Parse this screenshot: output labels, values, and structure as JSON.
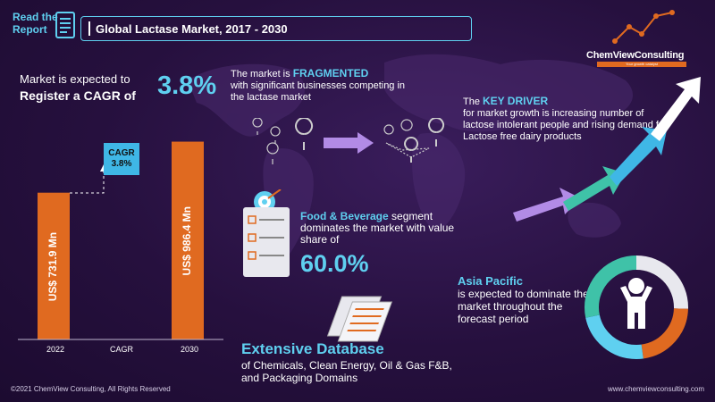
{
  "header": {
    "read_report": [
      "Read the",
      "Report"
    ],
    "title": "Global Lactase Market, 2017  - 2030"
  },
  "cagr": {
    "intro_line1": "Market is expected to",
    "intro_line2": "Register a CAGR of",
    "value": "3.8%",
    "badge_title": "CAGR",
    "badge_value": "3.8%"
  },
  "chart_data": {
    "type": "bar",
    "categories": [
      "2022",
      "CAGR",
      "2030"
    ],
    "values": [
      731.9,
      null,
      986.4
    ],
    "bar_labels": [
      "US$ 731.9 Mn",
      "",
      "US$ 986.4 Mn"
    ],
    "annotation": "CAGR 3.8%",
    "colors": {
      "bar": "#e06a20",
      "badge": "#3fb7e6"
    }
  },
  "fragmented": {
    "pre": "The market is ",
    "highlight": "FRAGMENTED",
    "rest": "with significant businesses competing in the lactase market"
  },
  "key_driver": {
    "pre": "The ",
    "highlight": "KEY DRIVER",
    "rest": "for market growth is increasing number of lactose intolerant people and rising demand for Lactose free dairy products"
  },
  "segment": {
    "highlight": "Food & Beverage",
    "rest": " segment dominates the market with value share of",
    "value": "60.0%"
  },
  "region": {
    "highlight": "Asia Pacific",
    "rest": "is expected to dominate the market throughout the forecast period"
  },
  "database": {
    "title": "Extensive Database",
    "subtitle": "of Chemicals, Clean Energy, Oil & Gas F&B, and Packaging Domains"
  },
  "logo": {
    "name": "ChemViewConsulting",
    "tagline": "Your growth catalyst"
  },
  "footer": {
    "copyright": "©2021  ChemView  Consulting,  All Rights Reserved",
    "website": "www.chemviewconsulting.com"
  },
  "colors": {
    "accent": "#5fd0f0",
    "orange": "#e06a20",
    "background": "#26103e"
  }
}
